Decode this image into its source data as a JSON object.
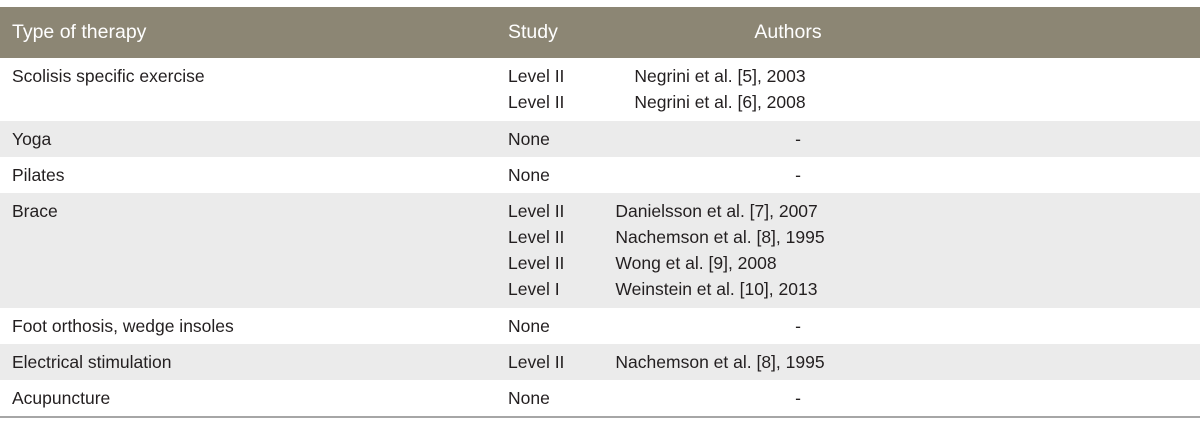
{
  "headers": {
    "type": "Type of therapy",
    "study": "Study",
    "authors": "Authors"
  },
  "rows": [
    {
      "therapy": "Scolisis specific exercise",
      "studies": [
        "Level II",
        "Level II"
      ],
      "authors": [
        "Negrini et al. [5], 2003",
        "Negrini et al. [6], 2008"
      ]
    },
    {
      "therapy": "Yoga",
      "studies": [
        "None"
      ],
      "authors": [
        "-"
      ]
    },
    {
      "therapy": "Pilates",
      "studies": [
        "None"
      ],
      "authors": [
        "-"
      ]
    },
    {
      "therapy": "Brace",
      "studies": [
        "Level II",
        "Level II",
        "Level II",
        "Level I"
      ],
      "authors": [
        "Danielsson et al. [7], 2007",
        "Nachemson et al. [8], 1995",
        "Wong et al. [9], 2008",
        "Weinstein et al. [10], 2013"
      ]
    },
    {
      "therapy": "Foot orthosis, wedge insoles",
      "studies": [
        "None"
      ],
      "authors": [
        "-"
      ]
    },
    {
      "therapy": "Electrical stimulation",
      "studies": [
        "Level II"
      ],
      "authors": [
        "Nachemson et al. [8], 1995"
      ]
    },
    {
      "therapy": "Acupuncture",
      "studies": [
        "None"
      ],
      "authors": [
        "-"
      ]
    }
  ],
  "colors": {
    "header_bg": "#8c8674",
    "header_text": "#ffffff",
    "shade_row": "#ebebeb",
    "text": "#231f20"
  }
}
